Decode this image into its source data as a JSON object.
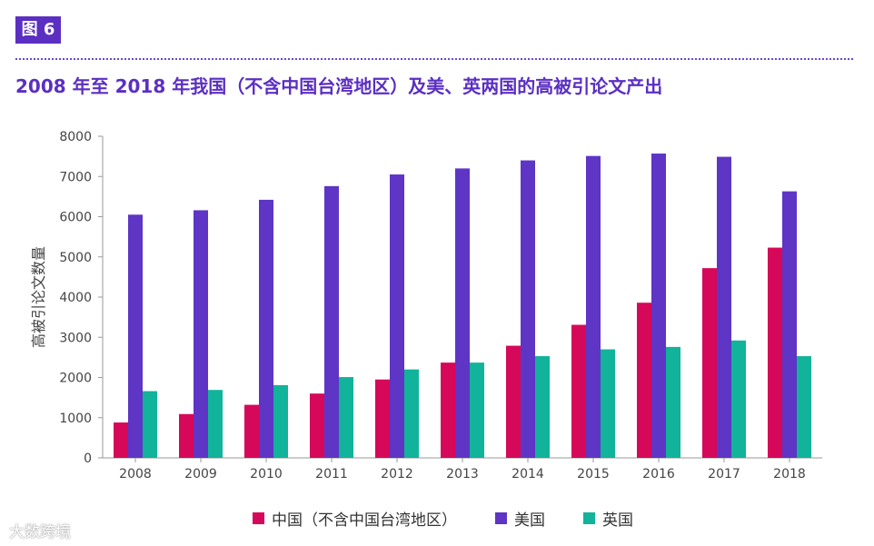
{
  "figure_label": "图 6",
  "watermark": "大数跨境",
  "chart_data": {
    "type": "bar",
    "title": "2008 年至 2018 年我国（不含中国台湾地区）及美、英两国的高被引论文产出",
    "xlabel": "",
    "ylabel": "高被引论文数量",
    "ylim": [
      0,
      8000
    ],
    "yticks": [
      0,
      1000,
      2000,
      3000,
      4000,
      5000,
      6000,
      7000,
      8000
    ],
    "grid": false,
    "legend_position": "bottom",
    "categories": [
      "2008",
      "2009",
      "2010",
      "2011",
      "2012",
      "2013",
      "2014",
      "2015",
      "2016",
      "2017",
      "2018"
    ],
    "series": [
      {
        "name": "中国（不含中国台湾地区）",
        "color": "#d6085a",
        "values": [
          880,
          1090,
          1320,
          1600,
          1950,
          2370,
          2790,
          3310,
          3860,
          4720,
          5230
        ]
      },
      {
        "name": "美国",
        "color": "#5e35c4",
        "values": [
          6050,
          6160,
          6420,
          6760,
          7050,
          7200,
          7400,
          7510,
          7570,
          7490,
          6630
        ]
      },
      {
        "name": "英国",
        "color": "#11b39a",
        "values": [
          1660,
          1690,
          1810,
          2010,
          2200,
          2370,
          2530,
          2700,
          2760,
          2920,
          2530
        ]
      }
    ]
  }
}
